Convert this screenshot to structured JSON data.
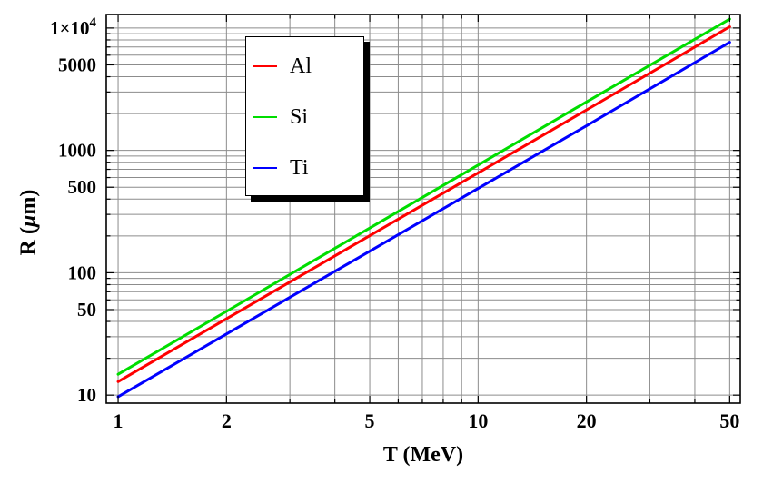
{
  "figure": {
    "background": "#ffffff",
    "frame_color": "#000000",
    "grid_color": "#8c8c8c"
  },
  "axes": {
    "x": {
      "label": "T (MeV)",
      "scale": "log",
      "range": [
        0.927,
        53.5
      ],
      "major_ticks": [
        1,
        2,
        5,
        10,
        20,
        50
      ],
      "major_labels": [
        "1",
        "2",
        "5",
        "10",
        "20",
        "50"
      ],
      "minor_ticks": [
        3,
        4,
        6,
        7,
        8,
        9,
        30,
        40
      ],
      "gridlines": [
        1,
        2,
        3,
        4,
        5,
        6,
        7,
        8,
        9,
        10,
        20,
        30,
        40,
        50
      ]
    },
    "y": {
      "label_parts": {
        "prefix": "R (",
        "mu": "μ",
        "suffix": "m)"
      },
      "scale": "log",
      "range": [
        8.6,
        12900
      ],
      "major_ticks": [
        10,
        50,
        100,
        500,
        1000,
        5000,
        10000
      ],
      "major_labels": [
        "10",
        "50",
        "100",
        "500",
        "1000",
        "5000",
        "1×10^4"
      ],
      "minor_ticks": [
        20,
        30,
        40,
        60,
        70,
        80,
        90,
        200,
        300,
        400,
        600,
        700,
        800,
        900,
        2000,
        3000,
        4000,
        6000,
        7000,
        8000,
        9000
      ],
      "gridlines": [
        10,
        20,
        30,
        40,
        50,
        60,
        70,
        80,
        90,
        100,
        200,
        300,
        400,
        500,
        600,
        700,
        800,
        900,
        1000,
        2000,
        3000,
        4000,
        5000,
        6000,
        7000,
        8000,
        9000,
        10000
      ]
    }
  },
  "chart_data": {
    "type": "line",
    "title": "",
    "xlabel": "T (MeV)",
    "ylabel": "R (μm)",
    "x_scale": "log",
    "y_scale": "log",
    "xlim": [
      1,
      50
    ],
    "ylim": [
      10,
      10000
    ],
    "grid": true,
    "x": [
      1,
      2,
      5,
      10,
      20,
      50
    ],
    "series": [
      {
        "name": "Al",
        "color": "#ff0000",
        "values": [
          12.9,
          42.1,
          201,
          655,
          2140,
          10240
        ]
      },
      {
        "name": "Si",
        "color": "#00dd00",
        "values": [
          14.8,
          48.4,
          232,
          759,
          2490,
          11840
        ]
      },
      {
        "name": "Ti",
        "color": "#0000ff",
        "values": [
          9.7,
          31.6,
          150,
          489,
          1590,
          7650
        ]
      }
    ],
    "legend": {
      "position": "upper-left-inside",
      "items": [
        {
          "label": "Al",
          "color": "#ff0000"
        },
        {
          "label": "Si",
          "color": "#00dd00"
        },
        {
          "label": "Ti",
          "color": "#0000ff"
        }
      ]
    }
  }
}
